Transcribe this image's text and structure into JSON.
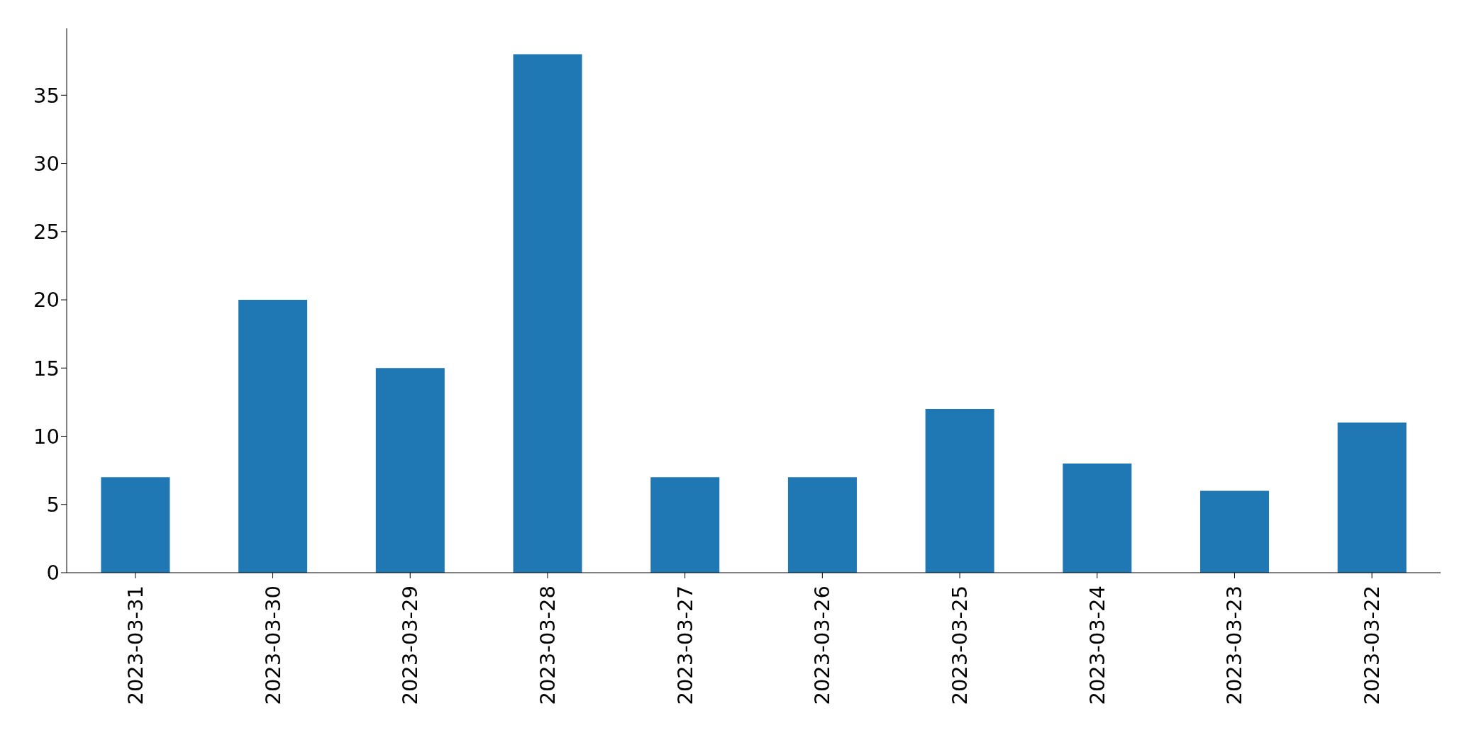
{
  "chart_data": {
    "type": "bar",
    "categories": [
      "2023-03-31",
      "2023-03-30",
      "2023-03-29",
      "2023-03-28",
      "2023-03-27",
      "2023-03-26",
      "2023-03-25",
      "2023-03-24",
      "2023-03-23",
      "2023-03-22"
    ],
    "values": [
      7,
      20,
      15,
      38,
      7,
      7,
      12,
      8,
      6,
      11
    ],
    "color": "#1f77b4",
    "ylim": [
      0,
      39.9
    ],
    "yticks": [
      0,
      5,
      10,
      15,
      20,
      25,
      30,
      35
    ]
  }
}
